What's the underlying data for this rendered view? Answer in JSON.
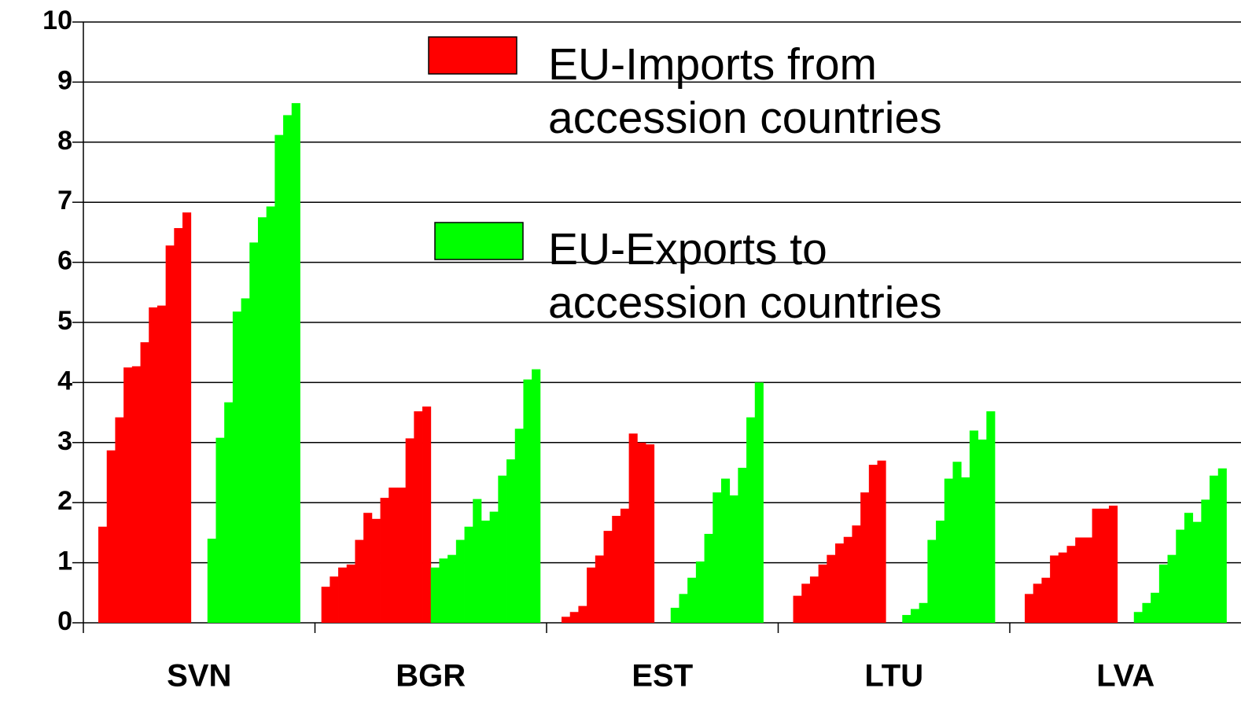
{
  "chart_data": {
    "type": "grouped-year-bar",
    "categories": [
      "SVN",
      "BGR",
      "EST",
      "LTU",
      "LVA"
    ],
    "series": [
      {
        "name": "EU-Imports from accession countries",
        "color": "#ff0000",
        "values": [
          [
            1.6,
            2.87,
            3.42,
            4.25,
            4.27,
            4.67,
            5.25,
            5.28,
            6.28,
            6.57,
            6.83
          ],
          [
            0.6,
            0.77,
            0.92,
            0.97,
            1.38,
            1.83,
            1.73,
            2.08,
            2.25,
            2.25,
            3.07,
            3.52,
            3.6
          ],
          [
            0.1,
            0.18,
            0.28,
            0.92,
            1.12,
            1.53,
            1.78,
            1.9,
            3.15,
            3.0,
            2.97
          ],
          [
            0.45,
            0.65,
            0.77,
            0.97,
            1.13,
            1.32,
            1.43,
            1.62,
            2.17,
            2.63,
            2.7
          ],
          [
            0.48,
            0.65,
            0.75,
            1.12,
            1.17,
            1.28,
            1.42,
            1.42,
            1.9,
            1.9,
            1.95
          ]
        ]
      },
      {
        "name": "EU-Exports to accession countries",
        "color": "#00ff00",
        "values": [
          [
            1.4,
            3.08,
            3.67,
            5.18,
            5.4,
            6.33,
            6.75,
            6.93,
            8.12,
            8.45,
            8.65
          ],
          [
            0.92,
            1.07,
            1.13,
            1.38,
            1.6,
            2.06,
            1.7,
            1.85,
            2.45,
            2.72,
            3.23,
            4.05,
            4.22
          ],
          [
            0.25,
            0.48,
            0.75,
            1.02,
            1.48,
            2.17,
            2.4,
            2.12,
            2.58,
            3.42,
            4.0
          ],
          [
            0.13,
            0.23,
            0.33,
            1.38,
            1.7,
            2.4,
            2.68,
            2.42,
            3.2,
            3.05,
            3.52
          ],
          [
            0.18,
            0.33,
            0.5,
            0.97,
            1.13,
            1.55,
            1.83,
            1.68,
            2.05,
            2.45,
            2.57
          ]
        ]
      }
    ],
    "ylim": [
      0,
      10
    ],
    "yticks": [
      0,
      1,
      2,
      3,
      4,
      5,
      6,
      7,
      8,
      9,
      10
    ],
    "grid": true
  }
}
